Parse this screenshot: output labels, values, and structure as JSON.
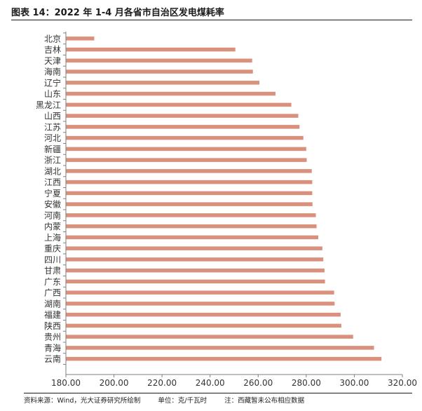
{
  "title": "图表 14：2022 年 1-4 月各省市自治区发电煤耗率",
  "footer": {
    "source": "资料来源：Wind，光大证券研究所绘制",
    "unit": "单位：克/千瓦时",
    "note": "注：西藏暂未公布相应数据"
  },
  "colors": {
    "bar": "#d9907c",
    "axis": "#7f7f7f",
    "text": "#333333"
  },
  "chart_data": {
    "type": "bar",
    "orientation": "horizontal",
    "categories": [
      "北京",
      "吉林",
      "天津",
      "海南",
      "辽宁",
      "山东",
      "黑龙江",
      "山西",
      "江苏",
      "河北",
      "新疆",
      "浙江",
      "湖北",
      "江西",
      "宁夏",
      "安徽",
      "河南",
      "内蒙",
      "上海",
      "重庆",
      "四川",
      "甘肃",
      "广东",
      "广西",
      "湖南",
      "福建",
      "陕西",
      "贵州",
      "青海",
      "云南"
    ],
    "values": [
      191.8,
      250.5,
      257.5,
      257.8,
      260.5,
      267.2,
      273.8,
      276.7,
      277.2,
      278.8,
      280.0,
      280.2,
      282.3,
      282.5,
      282.5,
      282.6,
      284.0,
      284.3,
      285.0,
      286.7,
      287.1,
      287.6,
      287.8,
      291.6,
      291.8,
      294.3,
      294.6,
      299.5,
      308.2,
      311.3
    ],
    "xlim": [
      180,
      320
    ],
    "xticks": [
      "180.00",
      "200.00",
      "220.00",
      "240.00",
      "260.00",
      "280.00",
      "300.00",
      "320.00"
    ],
    "xlabel": "",
    "ylabel": "",
    "grid": false,
    "legend": "none"
  }
}
